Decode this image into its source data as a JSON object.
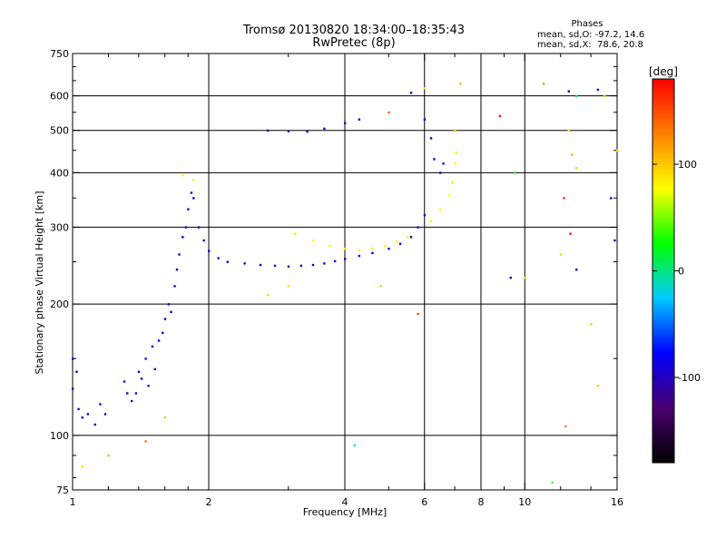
{
  "header": {
    "title_line1": "Tromsø 20130820 18:34:00–18:35:43",
    "title_line2": "RwPretec (8p)",
    "stats_heading": "Phases",
    "stats_line1": "mean, sd,O: -97.2, 14.6",
    "stats_line2": "mean, sd,X:  78.6, 20.8"
  },
  "chart_data": {
    "type": "scatter",
    "title": "Tromsø 20130820 18:34:00–18:35:43",
    "subtitle": "RwPretec (8p)",
    "xlabel": "Frequency [MHz]",
    "ylabel": "Stationary phase Virtual Height [km]",
    "x_scale": "log",
    "y_scale": "log",
    "xlim": [
      1,
      16
    ],
    "ylim": [
      75,
      750
    ],
    "x_ticks": [
      1,
      2,
      4,
      6,
      8,
      10,
      16
    ],
    "y_ticks": [
      75,
      100,
      200,
      300,
      400,
      500,
      600,
      750
    ],
    "x_gridlines": [
      2,
      4,
      6,
      8,
      10
    ],
    "y_gridlines": [
      100,
      200,
      300,
      400,
      500,
      600
    ],
    "grid": true,
    "colorbar": {
      "label": "[deg]",
      "range": [
        -180,
        180
      ],
      "ticks": [
        -100,
        0,
        100
      ],
      "colors": [
        "#000000",
        "#4a0070",
        "#0000ff",
        "#00c8ff",
        "#00ff00",
        "#ffff00",
        "#ff8000",
        "#ff0000"
      ]
    },
    "series": [
      {
        "name": "O-mode",
        "points": [
          [
            1.0,
            128,
            -95
          ],
          [
            1.03,
            115,
            -100
          ],
          [
            1.05,
            110,
            -102
          ],
          [
            1.08,
            112,
            -97
          ],
          [
            1.12,
            106,
            -105
          ],
          [
            1.15,
            118,
            -98
          ],
          [
            1.18,
            112,
            -96
          ],
          [
            1.3,
            133,
            -95
          ],
          [
            1.32,
            125,
            -100
          ],
          [
            1.35,
            120,
            -104
          ],
          [
            1.38,
            125,
            -92
          ],
          [
            1.4,
            140,
            -98
          ],
          [
            1.42,
            135,
            -100
          ],
          [
            1.45,
            150,
            -95
          ],
          [
            1.47,
            130,
            -97
          ],
          [
            1.5,
            160,
            -99
          ],
          [
            1.52,
            142,
            -94
          ],
          [
            1.55,
            165,
            -96
          ],
          [
            1.58,
            172,
            -100
          ],
          [
            1.6,
            185,
            -95
          ],
          [
            1.63,
            200,
            -98
          ],
          [
            1.65,
            192,
            -97
          ],
          [
            1.68,
            220,
            -100
          ],
          [
            1.7,
            240,
            -96
          ],
          [
            1.72,
            260,
            -99
          ],
          [
            1.75,
            285,
            -95
          ],
          [
            1.78,
            300,
            -100
          ],
          [
            1.8,
            330,
            -97
          ],
          [
            1.83,
            360,
            -93
          ],
          [
            1.85,
            350,
            -98
          ],
          [
            1.9,
            300,
            -96
          ],
          [
            1.95,
            280,
            -99
          ],
          [
            2.0,
            265,
            -97
          ],
          [
            2.1,
            255,
            -100
          ],
          [
            2.2,
            250,
            -98
          ],
          [
            2.4,
            248,
            -96
          ],
          [
            2.6,
            246,
            -95
          ],
          [
            2.8,
            245,
            -99
          ],
          [
            3.0,
            244,
            -100
          ],
          [
            3.2,
            245,
            -95
          ],
          [
            3.4,
            246,
            -97
          ],
          [
            3.6,
            248,
            -99
          ],
          [
            3.8,
            251,
            -96
          ],
          [
            4.0,
            254,
            -98
          ],
          [
            4.3,
            258,
            -94
          ],
          [
            4.6,
            262,
            -97
          ],
          [
            5.0,
            268,
            -95
          ],
          [
            5.3,
            275,
            -96
          ],
          [
            5.6,
            285,
            -98
          ],
          [
            5.8,
            300,
            -95
          ],
          [
            6.0,
            320,
            -97
          ],
          [
            2.7,
            500,
            -100
          ],
          [
            3.0,
            498,
            -96
          ],
          [
            3.3,
            497,
            -98
          ],
          [
            3.6,
            505,
            -95
          ],
          [
            4.0,
            520,
            -99
          ],
          [
            4.3,
            530,
            -97
          ],
          [
            5.6,
            610,
            -100
          ],
          [
            6.0,
            530,
            -96
          ],
          [
            6.3,
            430,
            -98
          ],
          [
            6.5,
            400,
            -95
          ],
          [
            6.6,
            420,
            -97
          ],
          [
            6.2,
            480,
            -99
          ],
          [
            9.3,
            230,
            -100
          ],
          [
            12.5,
            615,
            -96
          ],
          [
            14.5,
            620,
            -98
          ],
          [
            13.0,
            240,
            -95
          ],
          [
            15.5,
            350,
            -97
          ],
          [
            15.8,
            280,
            -99
          ],
          [
            1.0,
            150,
            -94
          ],
          [
            1.02,
            140,
            -99
          ]
        ]
      },
      {
        "name": "X-mode",
        "points": [
          [
            3.1,
            290,
            70
          ],
          [
            3.4,
            280,
            80
          ],
          [
            3.7,
            272,
            75
          ],
          [
            4.0,
            268,
            85
          ],
          [
            4.3,
            266,
            78
          ],
          [
            4.6,
            268,
            72
          ],
          [
            4.9,
            272,
            80
          ],
          [
            5.2,
            278,
            76
          ],
          [
            5.5,
            285,
            74
          ],
          [
            6.2,
            310,
            82
          ],
          [
            6.5,
            330,
            78
          ],
          [
            6.8,
            355,
            76
          ],
          [
            6.9,
            380,
            84
          ],
          [
            7.0,
            420,
            80
          ],
          [
            7.05,
            445,
            75
          ],
          [
            1.05,
            85,
            90
          ],
          [
            1.2,
            90,
            110
          ],
          [
            1.45,
            97,
            130
          ],
          [
            1.6,
            110,
            100
          ],
          [
            1.75,
            395,
            80
          ],
          [
            1.85,
            385,
            75
          ],
          [
            2.7,
            210,
            95
          ],
          [
            3.0,
            220,
            90
          ],
          [
            4.8,
            220,
            100
          ],
          [
            5.0,
            550,
            140
          ],
          [
            6.0,
            625,
            90
          ],
          [
            7.2,
            640,
            110
          ],
          [
            7.0,
            500,
            100
          ],
          [
            10.0,
            230,
            90
          ],
          [
            11.0,
            640,
            120
          ],
          [
            12.0,
            260,
            60
          ],
          [
            12.3,
            105,
            130
          ],
          [
            12.5,
            500,
            90
          ],
          [
            12.7,
            440,
            110
          ],
          [
            13.0,
            410,
            95
          ],
          [
            14.0,
            180,
            100
          ],
          [
            14.5,
            130,
            105
          ],
          [
            15.0,
            600,
            95
          ],
          [
            16.0,
            450,
            90
          ],
          [
            11.5,
            78,
            40
          ],
          [
            9.5,
            400,
            30
          ],
          [
            13.0,
            600,
            0
          ],
          [
            8.8,
            540,
            170
          ],
          [
            5.8,
            190,
            150
          ],
          [
            4.2,
            95,
            -20
          ],
          [
            12.2,
            350,
            160
          ],
          [
            12.6,
            290,
            170
          ]
        ]
      }
    ]
  }
}
